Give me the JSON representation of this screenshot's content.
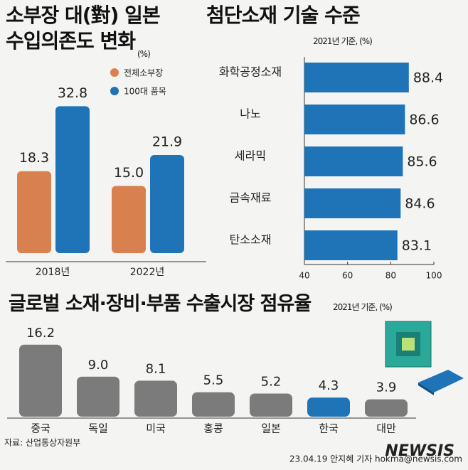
{
  "chart_data": [
    {
      "type": "grouped-bar",
      "title": "소부장 대(對) 일본\n수입의존도 변화",
      "unit": "(%)",
      "categories": [
        "2018년",
        "2022년"
      ],
      "series": [
        {
          "name": "전체소부장",
          "color": "#d9804f",
          "values": [
            18.3,
            15.0
          ],
          "value_labels": [
            "18.3",
            "15.0"
          ]
        },
        {
          "name": "100대 품목",
          "color": "#1f73b7",
          "values": [
            32.8,
            21.9
          ],
          "value_labels": [
            "32.8",
            "21.9"
          ]
        }
      ]
    },
    {
      "type": "hbar",
      "title": "첨단소재 기술 수준",
      "subtitle": "2021년 기준, (%)",
      "categories": [
        "화학공정소재",
        "나노",
        "세라믹",
        "금속재료",
        "탄소소재"
      ],
      "values": [
        88.4,
        86.6,
        85.6,
        84.6,
        83.1
      ],
      "color": "#1f73b7",
      "xlim": [
        40,
        100
      ],
      "xticks": [
        40,
        60,
        80,
        100
      ]
    },
    {
      "type": "bar",
      "title": "글로벌 소재·장비·부품 수출시장 점유율",
      "subtitle": "2021년 기준, (%)",
      "categories": [
        "중국",
        "독일",
        "미국",
        "홍콩",
        "일본",
        "한국",
        "대만"
      ],
      "values": [
        16.2,
        9.0,
        8.1,
        5.5,
        5.2,
        4.3,
        3.9
      ],
      "value_labels": [
        "16.2",
        "9.0",
        "8.1",
        "5.5",
        "5.2",
        "4.3",
        "3.9"
      ],
      "colors": [
        "#7b7b7b",
        "#7b7b7b",
        "#7b7b7b",
        "#7b7b7b",
        "#7b7b7b",
        "#1f73b7",
        "#7b7b7b"
      ]
    }
  ],
  "footer": {
    "source": "자료: 산업통상자원부",
    "credit": "23.04.19 안지혜 기자 hokma@newsis.com",
    "logo": "NEWSIS"
  }
}
